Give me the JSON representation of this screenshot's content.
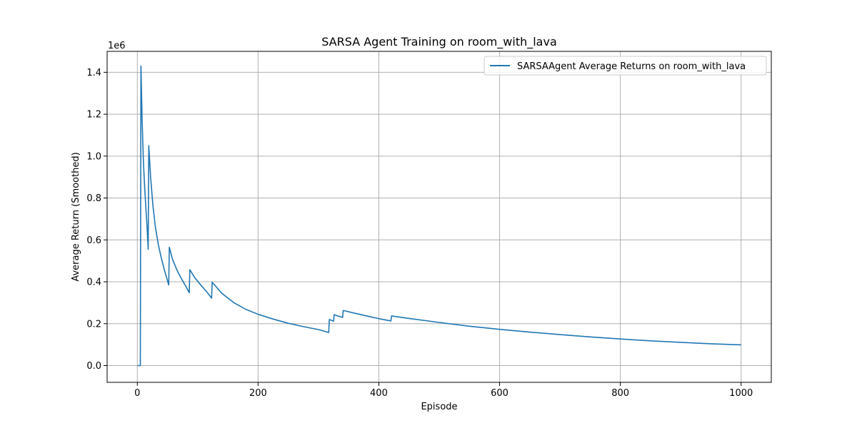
{
  "chart_data": {
    "type": "line",
    "title": "SARSA Agent Training on room_with_lava",
    "xlabel": "Episode",
    "ylabel": "Average Return (Smoothed)",
    "y_offset_label": "1e6",
    "xlim": [
      -50,
      1050
    ],
    "ylim": [
      -0.08,
      1.5
    ],
    "x_ticks": [
      0,
      200,
      400,
      600,
      800,
      1000
    ],
    "x_tick_labels": [
      "0",
      "200",
      "400",
      "600",
      "800",
      "1000"
    ],
    "y_ticks": [
      0.0,
      0.2,
      0.4,
      0.6,
      0.8,
      1.0,
      1.2,
      1.4
    ],
    "y_tick_labels": [
      "0.0",
      "0.2",
      "0.4",
      "0.6",
      "0.8",
      "1.0",
      "1.2",
      "1.4"
    ],
    "grid": true,
    "legend_position": "top-right",
    "series": [
      {
        "name": "SARSAAgent Average Returns on room_with_lava",
        "color": "#1f77b4",
        "x": [
          0,
          5,
          6,
          8,
          10,
          12,
          14,
          16,
          18,
          19,
          22,
          26,
          30,
          35,
          40,
          45,
          52,
          53,
          58,
          65,
          72,
          80,
          86,
          87,
          95,
          105,
          115,
          123,
          124,
          140,
          160,
          180,
          200,
          225,
          250,
          275,
          300,
          317,
          318,
          325,
          326,
          333,
          340,
          341,
          360,
          380,
          400,
          420,
          421,
          450,
          500,
          550,
          600,
          650,
          700,
          750,
          800,
          850,
          900,
          950,
          1000
        ],
        "y": [
          0.0,
          0.0,
          1.43,
          1.17,
          0.98,
          0.86,
          0.76,
          0.67,
          0.555,
          1.05,
          0.9,
          0.76,
          0.66,
          0.575,
          0.51,
          0.455,
          0.385,
          0.565,
          0.51,
          0.46,
          0.42,
          0.38,
          0.348,
          0.458,
          0.42,
          0.385,
          0.352,
          0.322,
          0.398,
          0.345,
          0.3,
          0.268,
          0.245,
          0.222,
          0.202,
          0.186,
          0.172,
          0.158,
          0.22,
          0.212,
          0.243,
          0.236,
          0.23,
          0.263,
          0.25,
          0.237,
          0.224,
          0.213,
          0.237,
          0.225,
          0.206,
          0.188,
          0.173,
          0.16,
          0.148,
          0.137,
          0.127,
          0.118,
          0.111,
          0.104,
          0.099
        ]
      }
    ]
  }
}
